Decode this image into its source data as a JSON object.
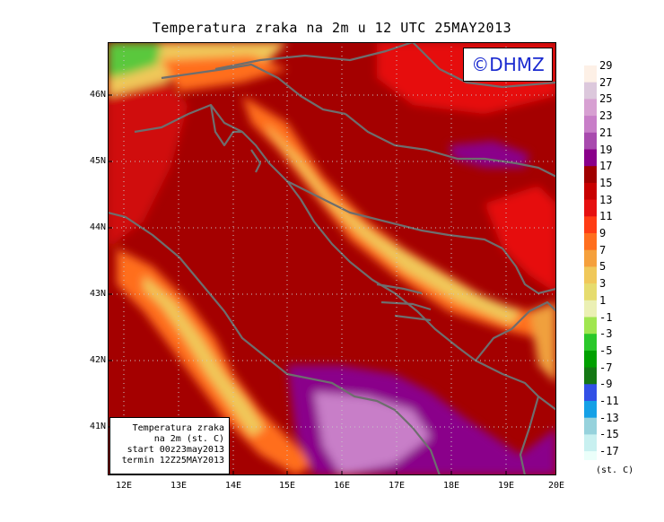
{
  "title": "Temperatura zraka na 2m u 12 UTC 25MAY2013",
  "logo_text": "©DHMZ",
  "info_box": {
    "line1": "Temperatura zraka",
    "line2": "na 2m (st. C)",
    "line3": "start 00z23may2013",
    "line4": "termin 12Z25MAY2013"
  },
  "lat_labels": [
    "46N",
    "45N",
    "44N",
    "43N",
    "42N",
    "41N"
  ],
  "lon_labels": [
    "12E",
    "13E",
    "14E",
    "15E",
    "16E",
    "17E",
    "18E",
    "19E",
    "20E"
  ],
  "colorbar": {
    "unit": "(st. C)",
    "labels": [
      "29",
      "27",
      "25",
      "23",
      "21",
      "19",
      "17",
      "15",
      "13",
      "11",
      "9",
      "7",
      "5",
      "3",
      "1",
      "-1",
      "-3",
      "-5",
      "-7",
      "-9",
      "-11",
      "-13",
      "-15",
      "-17"
    ],
    "colors": [
      "#fdf0e6",
      "#dcc8dc",
      "#d7a0d2",
      "#c87ec8",
      "#a84aae",
      "#8a008a",
      "#a00000",
      "#c80000",
      "#e61010",
      "#ff3c14",
      "#ff6e1e",
      "#f5a03c",
      "#f0c85a",
      "#e6dc6e",
      "#ebf0b4",
      "#a0e650",
      "#2ac82a",
      "#00a000",
      "#147814",
      "#3250e6",
      "#14a0e6",
      "#96d2dc",
      "#c8f0f0",
      "#ebfffa"
    ]
  },
  "map": {
    "lon_range": [
      11.8,
      20.0
    ],
    "lat_range": [
      40.3,
      46.8
    ],
    "background": "#a40000",
    "grid": "dotted"
  }
}
